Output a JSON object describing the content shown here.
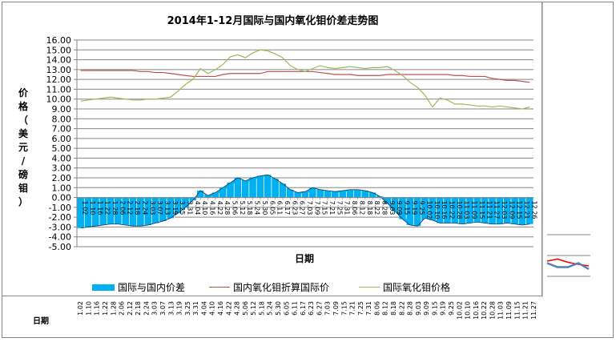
{
  "chart_data": {
    "type": "bar+line",
    "title": "2014年1-12月国际与国内氧化钼价差走势图",
    "ylabel": "价格（美元/磅钼）",
    "xlabel": "日期",
    "ylim": [
      -5,
      16
    ],
    "yticks": [
      "16.00",
      "15.00",
      "14.00",
      "13.00",
      "12.00",
      "11.00",
      "10.00",
      "9.00",
      "8.00",
      "7.00",
      "6.00",
      "5.00",
      "4.00",
      "3.00",
      "2.00",
      "1.00",
      "0.00",
      "-1.00",
      "-2.00",
      "-3.00",
      "-4.00",
      "-5.00"
    ],
    "grid": true,
    "legend_position": "bottom",
    "categories": [
      "1.02",
      "1.10",
      "1.16",
      "1.22",
      "1.28",
      "2.06",
      "2.12",
      "2.18",
      "2.24",
      "3.03",
      "3.07",
      "3.13",
      "3.19",
      "3.25",
      "3.31",
      "4.04",
      "4.10",
      "4.16",
      "4.22",
      "4.28",
      "5.06",
      "5.12",
      "5.18",
      "5.24",
      "5.30",
      "6.05",
      "6.11",
      "6.17",
      "6.23",
      "6.27",
      "7.03",
      "7.09",
      "7.15",
      "7.21",
      "7.25",
      "7.31",
      "8.06",
      "8.12",
      "8.18",
      "8.22",
      "8.28",
      "9.03",
      "9.09",
      "9.15",
      "9.19",
      "9.25",
      "10.02",
      "10.10",
      "10.16",
      "10.22",
      "10.28",
      "11.03",
      "11.09",
      "11.15",
      "11.21",
      "11.27",
      "12.03",
      "12.09",
      "12.15",
      "12.21",
      "12.26"
    ],
    "series": [
      {
        "name": "国际与国内价差",
        "type": "bar",
        "color": "#00b0f0",
        "values": [
          -3.1,
          -3.0,
          -2.9,
          -2.8,
          -2.7,
          -2.7,
          -2.8,
          -2.9,
          -2.9,
          -2.8,
          -2.6,
          -2.4,
          -2.1,
          -1.6,
          -1.0,
          -0.3,
          0.7,
          0.2,
          0.5,
          1.0,
          1.5,
          2.0,
          1.7,
          2.0,
          2.2,
          2.3,
          1.9,
          1.4,
          0.8,
          0.5,
          0.6,
          1.0,
          0.8,
          0.7,
          0.6,
          0.7,
          0.8,
          0.8,
          0.7,
          0.5,
          0.1,
          -0.6,
          -1.4,
          -2.2,
          -2.8,
          -2.9,
          -2.1,
          -2.3,
          -2.6,
          -2.6,
          -2.6,
          -2.7,
          -2.6,
          -2.5,
          -2.6,
          -2.7,
          -2.7,
          -2.6,
          -2.7,
          -2.8,
          -2.7
        ]
      },
      {
        "name": "国内氧化钼折算国际价",
        "type": "line",
        "color": "#c0504d",
        "values": [
          12.9,
          12.9,
          12.9,
          12.9,
          12.9,
          12.9,
          12.9,
          12.9,
          12.8,
          12.8,
          12.7,
          12.7,
          12.6,
          12.5,
          12.4,
          12.3,
          12.3,
          12.3,
          12.3,
          12.5,
          12.6,
          12.6,
          12.6,
          12.6,
          12.6,
          12.8,
          12.8,
          12.8,
          12.8,
          12.8,
          12.8,
          12.8,
          12.7,
          12.6,
          12.5,
          12.5,
          12.5,
          12.4,
          12.4,
          12.4,
          12.4,
          12.5,
          12.5,
          12.5,
          12.5,
          12.5,
          12.5,
          12.5,
          12.5,
          12.5,
          12.4,
          12.4,
          12.3,
          12.3,
          12.3,
          12.1,
          12.0,
          11.9,
          11.9,
          11.8,
          11.7
        ]
      },
      {
        "name": "国际氧化钼价格",
        "type": "line",
        "color": "#9bbb59",
        "values": [
          9.8,
          9.9,
          10.0,
          10.1,
          10.2,
          10.1,
          10.0,
          9.9,
          9.9,
          10.0,
          10.0,
          10.1,
          10.2,
          10.8,
          11.5,
          12.0,
          13.1,
          12.6,
          13.0,
          13.5,
          14.3,
          14.5,
          14.2,
          14.7,
          15.0,
          14.9,
          14.6,
          14.2,
          13.4,
          13.0,
          12.8,
          13.1,
          13.4,
          13.2,
          13.1,
          13.2,
          13.3,
          13.2,
          13.1,
          13.2,
          13.2,
          13.3,
          12.9,
          12.4,
          11.7,
          11.2,
          10.4,
          9.2,
          10.1,
          9.9,
          9.5,
          9.5,
          9.4,
          9.3,
          9.3,
          9.2,
          9.3,
          9.2,
          9.1,
          9.0,
          9.2
        ]
      }
    ]
  },
  "axis_name": "日期",
  "bottom_dates": [
    "1.02",
    "1.10",
    "1.16",
    "1.22",
    "1.28",
    "2.06",
    "2.12",
    "2.18",
    "2.24",
    "3.03",
    "3.07",
    "3.13",
    "3.19",
    "3.25",
    "3.31",
    "4.04",
    "4.10",
    "4.16",
    "4.22",
    "4.28",
    "5.06",
    "5.12",
    "5.18",
    "5.24",
    "5.30",
    "6.05",
    "6.11",
    "6.17",
    "6.23",
    "6.27",
    "7.03",
    "7.09",
    "7.15",
    "7.21",
    "7.25",
    "7.31",
    "8.06",
    "8.12",
    "8.18",
    "8.22",
    "8.28",
    "9.03",
    "9.09",
    "9.15",
    "9.19",
    "9.25",
    "10.02",
    "10.10",
    "10.16",
    "10.22",
    "10.28",
    "11.03",
    "11.09",
    "11.15",
    "11.21",
    "11.27"
  ],
  "legend": [
    {
      "label": "国际与国内价差",
      "color": "#00b0f0"
    },
    {
      "label": "国内氧化钼折算国际价",
      "color": "#c0504d"
    },
    {
      "label": "国际氧化钼价格",
      "color": "#9bbb59"
    }
  ],
  "side_chart": {
    "series": [
      {
        "color": "#ff0000",
        "values": [
          3,
          3.5,
          2.7,
          2.2,
          1.8
        ]
      },
      {
        "color": "#4f81bd",
        "values": [
          2.5,
          1.5,
          1.5,
          2.5,
          1
        ]
      }
    ]
  }
}
